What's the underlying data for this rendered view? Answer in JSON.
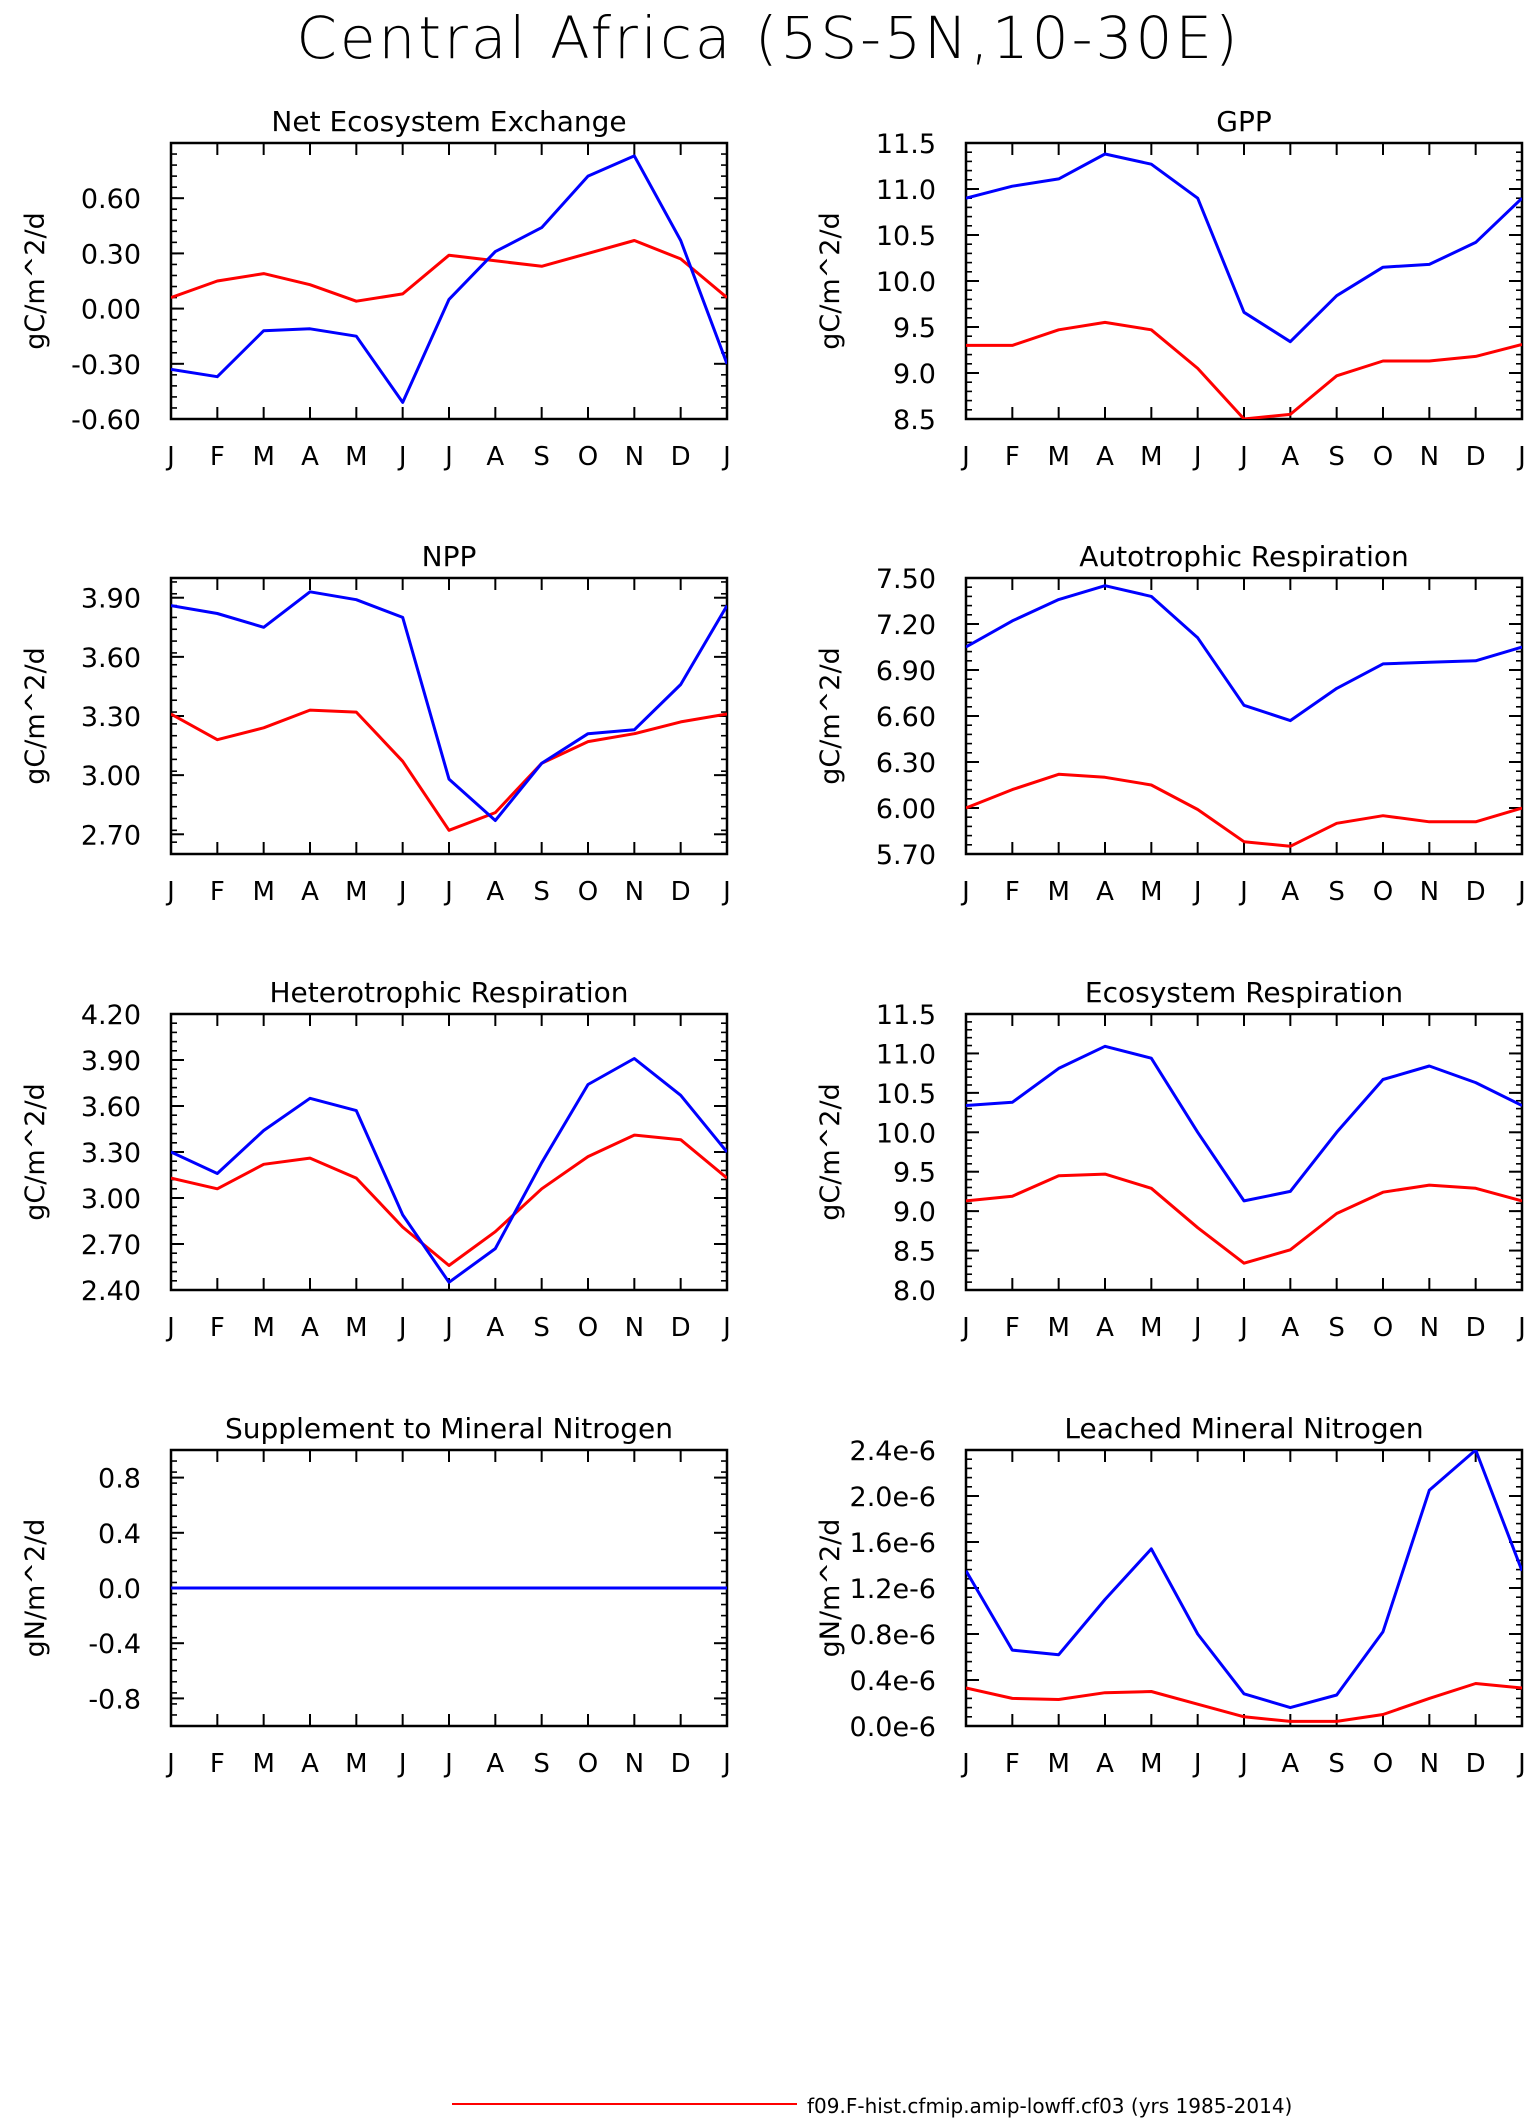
{
  "title": "Central Africa (5S-5N,10-30E)",
  "legend": {
    "label": "f09.F-hist.cfmip.amip-lowff.cf03 (yrs 1985-2014)",
    "color": "#ff0000"
  },
  "colors": {
    "series_a": "#ff0000",
    "series_b": "#0000ff"
  },
  "chart_data": [
    {
      "type": "line",
      "title": "Net Ecosystem Exchange",
      "ylabel": "gC/m^2/d",
      "categories": [
        "J",
        "F",
        "M",
        "A",
        "M",
        "J",
        "J",
        "A",
        "S",
        "O",
        "N",
        "D",
        "J"
      ],
      "ylim": [
        -0.6,
        0.9
      ],
      "yticks": [
        "0.60",
        "0.30",
        "0.00",
        "-0.30",
        "-0.60"
      ],
      "series": [
        {
          "color": "#ff0000",
          "values": [
            0.06,
            0.15,
            0.19,
            0.13,
            0.04,
            0.08,
            0.29,
            0.26,
            0.23,
            0.3,
            0.37,
            0.27,
            0.06
          ]
        },
        {
          "color": "#0000ff",
          "values": [
            -0.33,
            -0.37,
            -0.12,
            -0.11,
            -0.15,
            -0.51,
            0.05,
            0.31,
            0.44,
            0.72,
            0.83,
            0.37,
            -0.3
          ]
        }
      ]
    },
    {
      "type": "line",
      "title": "GPP",
      "ylabel": "gC/m^2/d",
      "categories": [
        "J",
        "F",
        "M",
        "A",
        "M",
        "J",
        "J",
        "A",
        "S",
        "O",
        "N",
        "D",
        "J"
      ],
      "ylim": [
        8.5,
        11.5
      ],
      "yticks": [
        "11.5",
        "11.0",
        "10.5",
        "10.0",
        "9.5",
        "9.0",
        "8.5"
      ],
      "series": [
        {
          "color": "#ff0000",
          "values": [
            9.3,
            9.3,
            9.47,
            9.55,
            9.47,
            9.05,
            8.5,
            8.55,
            8.97,
            9.13,
            9.13,
            9.18,
            9.31
          ]
        },
        {
          "color": "#0000ff",
          "values": [
            10.9,
            11.03,
            11.11,
            11.38,
            11.27,
            10.9,
            9.66,
            9.34,
            9.84,
            10.15,
            10.18,
            10.42,
            10.9
          ]
        }
      ]
    },
    {
      "type": "line",
      "title": "NPP",
      "ylabel": "gC/m^2/d",
      "categories": [
        "J",
        "F",
        "M",
        "A",
        "M",
        "J",
        "J",
        "A",
        "S",
        "O",
        "N",
        "D",
        "J"
      ],
      "ylim": [
        2.6,
        4.0
      ],
      "yticks": [
        "3.90",
        "3.60",
        "3.30",
        "3.00",
        "2.70"
      ],
      "series": [
        {
          "color": "#ff0000",
          "values": [
            3.31,
            3.18,
            3.24,
            3.33,
            3.32,
            3.07,
            2.72,
            2.81,
            3.06,
            3.17,
            3.21,
            3.27,
            3.31
          ]
        },
        {
          "color": "#0000ff",
          "values": [
            3.86,
            3.82,
            3.75,
            3.93,
            3.89,
            3.8,
            2.98,
            2.77,
            3.06,
            3.21,
            3.23,
            3.46,
            3.86
          ]
        }
      ]
    },
    {
      "type": "line",
      "title": "Autotrophic Respiration",
      "ylabel": "gC/m^2/d",
      "categories": [
        "J",
        "F",
        "M",
        "A",
        "M",
        "J",
        "J",
        "A",
        "S",
        "O",
        "N",
        "D",
        "J"
      ],
      "ylim": [
        5.7,
        7.5
      ],
      "yticks": [
        "7.50",
        "7.20",
        "6.90",
        "6.60",
        "6.30",
        "6.00",
        "5.70"
      ],
      "series": [
        {
          "color": "#ff0000",
          "values": [
            6.0,
            6.12,
            6.22,
            6.2,
            6.15,
            5.99,
            5.78,
            5.75,
            5.9,
            5.95,
            5.91,
            5.91,
            6.0
          ]
        },
        {
          "color": "#0000ff",
          "values": [
            7.05,
            7.22,
            7.36,
            7.45,
            7.38,
            7.11,
            6.67,
            6.57,
            6.78,
            6.94,
            6.95,
            6.96,
            7.05
          ]
        }
      ]
    },
    {
      "type": "line",
      "title": "Heterotrophic Respiration",
      "ylabel": "gC/m^2/d",
      "categories": [
        "J",
        "F",
        "M",
        "A",
        "M",
        "J",
        "J",
        "A",
        "S",
        "O",
        "N",
        "D",
        "J"
      ],
      "ylim": [
        2.4,
        4.2
      ],
      "yticks": [
        "4.20",
        "3.90",
        "3.60",
        "3.30",
        "3.00",
        "2.70",
        "2.40"
      ],
      "series": [
        {
          "color": "#ff0000",
          "values": [
            3.13,
            3.06,
            3.22,
            3.26,
            3.13,
            2.81,
            2.56,
            2.78,
            3.06,
            3.27,
            3.41,
            3.38,
            3.13
          ]
        },
        {
          "color": "#0000ff",
          "values": [
            3.3,
            3.16,
            3.44,
            3.65,
            3.57,
            2.89,
            2.45,
            2.67,
            3.23,
            3.74,
            3.91,
            3.67,
            3.3
          ]
        }
      ]
    },
    {
      "type": "line",
      "title": "Ecosystem Respiration",
      "ylabel": "gC/m^2/d",
      "categories": [
        "J",
        "F",
        "M",
        "A",
        "M",
        "J",
        "J",
        "A",
        "S",
        "O",
        "N",
        "D",
        "J"
      ],
      "ylim": [
        8.0,
        11.5
      ],
      "yticks": [
        "11.5",
        "11.0",
        "10.5",
        "10.0",
        "9.5",
        "9.0",
        "8.5",
        "8.0"
      ],
      "series": [
        {
          "color": "#ff0000",
          "values": [
            9.13,
            9.19,
            9.45,
            9.47,
            9.29,
            8.79,
            8.34,
            8.51,
            8.97,
            9.24,
            9.33,
            9.29,
            9.13
          ]
        },
        {
          "color": "#0000ff",
          "values": [
            10.34,
            10.38,
            10.81,
            11.09,
            10.94,
            10.0,
            9.13,
            9.25,
            10.0,
            10.67,
            10.84,
            10.63,
            10.34
          ]
        }
      ]
    },
    {
      "type": "line",
      "title": "Supplement to Mineral Nitrogen",
      "ylabel": "gN/m^2/d",
      "categories": [
        "J",
        "F",
        "M",
        "A",
        "M",
        "J",
        "J",
        "A",
        "S",
        "O",
        "N",
        "D",
        "J"
      ],
      "ylim": [
        -1.0,
        1.0
      ],
      "yticks": [
        "0.8",
        "0.4",
        "0.0",
        "-0.4",
        "-0.8"
      ],
      "series": [
        {
          "color": "#ff0000",
          "values": [
            0,
            0,
            0,
            0,
            0,
            0,
            0,
            0,
            0,
            0,
            0,
            0,
            0
          ]
        },
        {
          "color": "#0000ff",
          "values": [
            0,
            0,
            0,
            0,
            0,
            0,
            0,
            0,
            0,
            0,
            0,
            0,
            0
          ]
        }
      ]
    },
    {
      "type": "line",
      "title": "Leached Mineral Nitrogen",
      "ylabel": "gN/m^2/d",
      "categories": [
        "J",
        "F",
        "M",
        "A",
        "M",
        "J",
        "J",
        "A",
        "S",
        "O",
        "N",
        "D",
        "J"
      ],
      "ylim": [
        0,
        2.4e-06
      ],
      "yticks": [
        "2.4e-6",
        "2.0e-6",
        "1.6e-6",
        "1.2e-6",
        "0.8e-6",
        "0.4e-6",
        "0.0e-6"
      ],
      "series": [
        {
          "color": "#ff0000",
          "values": [
            3.3e-07,
            2.4e-07,
            2.3e-07,
            2.9e-07,
            3e-07,
            1.9e-07,
            8e-08,
            4e-08,
            4e-08,
            1e-07,
            2.4e-07,
            3.7e-07,
            3.3e-07
          ]
        },
        {
          "color": "#0000ff",
          "values": [
            1.35e-06,
            6.6e-07,
            6.2e-07,
            1.1e-06,
            1.54e-06,
            8e-07,
            2.8e-07,
            1.6e-07,
            2.7e-07,
            8.2e-07,
            2.05e-06,
            2.4e-06,
            1.35e-06
          ]
        }
      ]
    }
  ]
}
